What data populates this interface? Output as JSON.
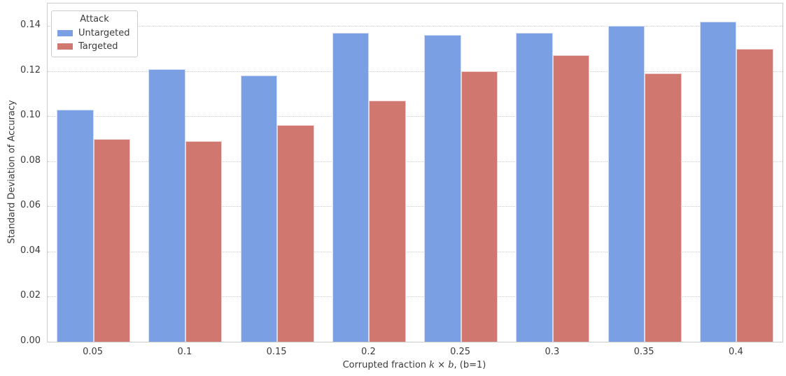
{
  "colors": {
    "untargeted": "#7aa0e3",
    "targeted": "#d0776f",
    "axis_border": "#cbcbcb",
    "gridline": "#cdcdcd",
    "text": "#3b3b3b",
    "background": "#ffffff"
  },
  "chart_data": {
    "type": "bar",
    "title": "",
    "xlabel": "Corrupted fraction k × b, (b=1)",
    "xlabel_parts": [
      {
        "text": "Corrupted fraction ",
        "italic": false
      },
      {
        "text": "k",
        "italic": true
      },
      {
        "text": " × ",
        "italic": false
      },
      {
        "text": "b",
        "italic": true
      },
      {
        "text": ", (b=1)",
        "italic": false
      }
    ],
    "ylabel": "Standard Deviation of Accuracy",
    "categories": [
      "0.05",
      "0.1",
      "0.15",
      "0.2",
      "0.25",
      "0.3",
      "0.35",
      "0.4"
    ],
    "series": [
      {
        "name": "Untargeted",
        "color": "#7aa0e3",
        "values": [
          0.103,
          0.121,
          0.118,
          0.137,
          0.136,
          0.137,
          0.14,
          0.142
        ]
      },
      {
        "name": "Targeted",
        "color": "#d0776f",
        "values": [
          0.09,
          0.089,
          0.096,
          0.107,
          0.12,
          0.127,
          0.119,
          0.13
        ]
      }
    ],
    "legend": {
      "title": "Attack",
      "position": "upper left"
    },
    "ylim": [
      0,
      0.15
    ],
    "yticks": [
      {
        "value": 0.0,
        "label": "0.00"
      },
      {
        "value": 0.02,
        "label": "0.02"
      },
      {
        "value": 0.04,
        "label": "0.04"
      },
      {
        "value": 0.06,
        "label": "0.06"
      },
      {
        "value": 0.08,
        "label": "0.08"
      },
      {
        "value": 0.1,
        "label": "0.10"
      },
      {
        "value": 0.12,
        "label": "0.12"
      },
      {
        "value": 0.14,
        "label": "0.14"
      }
    ],
    "grid": "horizontal-dotted",
    "legend_position": "upper-left"
  }
}
